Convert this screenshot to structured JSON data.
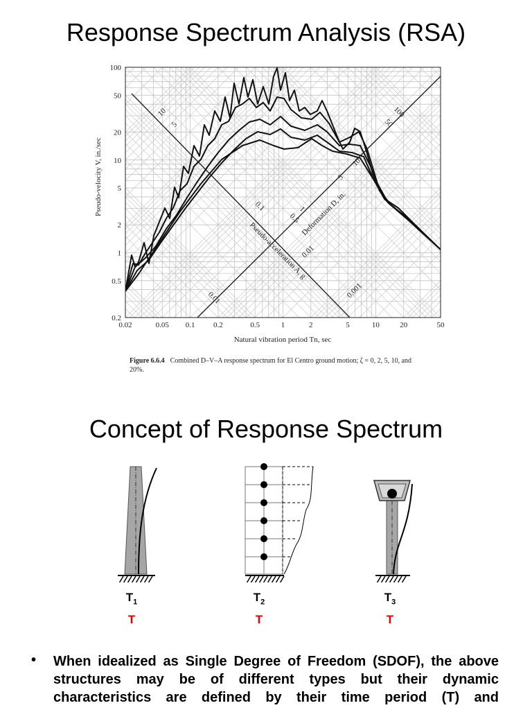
{
  "header": {
    "title": "Response Spectrum Analysis (RSA)"
  },
  "figure": {
    "y_axis_label": "Pseudo-velocity V, in./sec",
    "x_axis_label": "Natural vibration period Tn, sec",
    "yticks": [
      0.2,
      0.5,
      1,
      2,
      5,
      10,
      20,
      50,
      100
    ],
    "xticks": [
      0.02,
      0.05,
      0.1,
      0.2,
      0.5,
      1,
      2,
      5,
      10,
      20,
      50
    ],
    "acceleration_axis_label": "Pseudo-acceleration A, g",
    "deformation_axis_label": "Deformation D, in.",
    "diagonal_labels": [
      "10",
      "5",
      "100",
      "50",
      "0.1",
      "0.5",
      "1",
      "0.01",
      "5",
      "10",
      "0.01",
      "0.001"
    ],
    "caption_number": "Figure 6.6.4",
    "caption_text": "Combined D–V–A response spectrum for El Centro ground motion; ζ = 0, 2, 5, 10, and 20%."
  },
  "section": {
    "title": "Concept of Response Spectrum",
    "structures": [
      {
        "label": "T",
        "subscript": "1",
        "period": "T"
      },
      {
        "label": "T",
        "subscript": "2",
        "period": "T"
      },
      {
        "label": "T",
        "subscript": "3",
        "period": "T"
      }
    ]
  },
  "bullets": [
    "When idealized as Single Degree of Freedom (SDOF), the above structures may be of different types but their dynamic characteristics  are defined by their time period (T) and"
  ]
}
